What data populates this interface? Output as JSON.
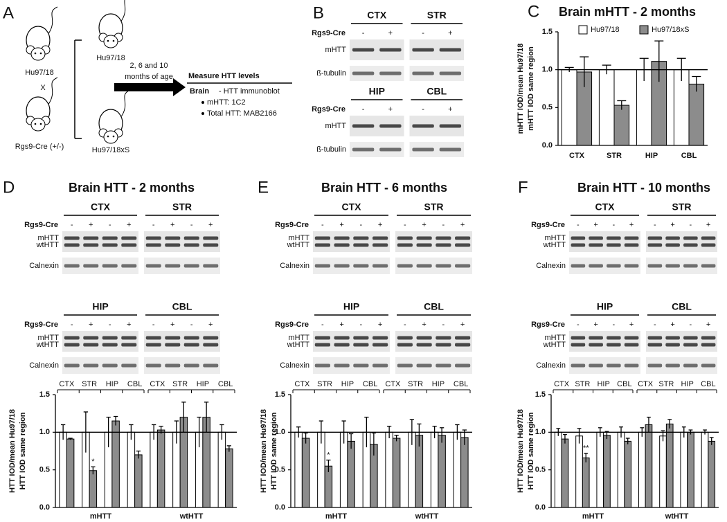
{
  "panel_a": {
    "letter": "A",
    "parent_1": "Hu97/18",
    "cross": "X",
    "parent_2": "Rgs9-Cre (+/-)",
    "offspring_1": "Hu97/18",
    "offspring_2": "Hu97/18xS",
    "age_line_1": "2, 6 and 10",
    "age_line_2": "months of age",
    "heading": "Measure HTT levels",
    "tissue": "Brain",
    "method": "- HTT immunoblot",
    "antibodies": [
      "mHTT: 1C2",
      "Total HTT: MAB2166"
    ]
  },
  "panel_b": {
    "letter": "B",
    "blocks": [
      {
        "regions": [
          "CTX",
          "STR"
        ],
        "genotype_label": "Rgs9-Cre",
        "lanes": [
          "-",
          "+"
        ],
        "band_labels": [
          "mHTT"
        ],
        "loading_label": "ß-tubulin"
      },
      {
        "regions": [
          "HIP",
          "CBL"
        ],
        "genotype_label": "Rgs9-Cre",
        "lanes": [
          "-",
          "+"
        ],
        "band_labels": [
          "mHTT"
        ],
        "loading_label": "ß-tubulin"
      }
    ]
  },
  "blot_panels": [
    {
      "letter": "D",
      "title": "Brain HTT - 2 months",
      "blocks": [
        {
          "regions": [
            "CTX",
            "STR"
          ],
          "genotype_label": "Rgs9-Cre",
          "lanes": [
            "-",
            "+",
            "-",
            "+"
          ],
          "band_labels": [
            "mHTT",
            "wtHTT"
          ],
          "loading_label": "Calnexin"
        },
        {
          "regions": [
            "HIP",
            "CBL"
          ],
          "genotype_label": "Rgs9-Cre",
          "lanes": [
            "-",
            "+",
            "-",
            "+"
          ],
          "band_labels": [
            "mHTT",
            "wtHTT"
          ],
          "loading_label": "Calnexin"
        }
      ]
    },
    {
      "letter": "E",
      "title": "Brain HTT - 6 months",
      "blocks": [
        {
          "regions": [
            "CTX",
            "STR"
          ],
          "genotype_label": "Rgs9-Cre",
          "lanes": [
            "-",
            "+",
            "-",
            "+"
          ],
          "band_labels": [
            "mHTT",
            "wtHTT"
          ],
          "loading_label": "Calnexin"
        },
        {
          "regions": [
            "HIP",
            "CBL"
          ],
          "genotype_label": "Rgs9-Cre",
          "lanes": [
            "-",
            "+",
            "-",
            "+"
          ],
          "band_labels": [
            "mHTT",
            "wtHTT"
          ],
          "loading_label": "Calnexin"
        }
      ]
    },
    {
      "letter": "F",
      "title": "Brain HTT - 10 months",
      "blocks": [
        {
          "regions": [
            "CTX",
            "STR"
          ],
          "genotype_label": "Rgs9-Cre",
          "lanes": [
            "-",
            "+",
            "-",
            "+"
          ],
          "band_labels": [
            "mHTT",
            "wtHTT"
          ],
          "loading_label": "Calnexin"
        },
        {
          "regions": [
            "HIP",
            "CBL"
          ],
          "genotype_label": "Rgs9-Cre",
          "lanes": [
            "-",
            "+",
            "-",
            "+"
          ],
          "band_labels": [
            "mHTT",
            "wtHTT"
          ],
          "loading_label": "Calnexin"
        }
      ]
    }
  ],
  "chart_data": [
    {
      "type": "bar",
      "letter": "C",
      "title": "Brain mHTT - 2 months",
      "ylabel": [
        "mHTT IOD/mean Hu97/18",
        "mHTT IOD same region"
      ],
      "categories": [
        "CTX",
        "STR",
        "HIP",
        "CBL"
      ],
      "series": [
        {
          "name": "Hu97/18",
          "color": "#ffffff",
          "values": [
            1.0,
            1.0,
            1.0,
            1.0
          ],
          "errors": [
            0.03,
            0.06,
            0.15,
            0.15
          ]
        },
        {
          "name": "Hu97/18xS",
          "color": "#8c8c8c",
          "values": [
            0.97,
            0.53,
            1.11,
            0.81
          ],
          "errors": [
            0.2,
            0.06,
            0.27,
            0.1
          ]
        }
      ],
      "ylim": [
        0,
        1.5
      ],
      "yticks": [
        {
          "value": 0,
          "label": "0.0"
        },
        0.5,
        {
          "value": 1,
          "label": "1.0"
        },
        1.5
      ],
      "reference_line": 1
    },
    {
      "type": "bar",
      "ylabel": [
        "HTT IOD/mean Hu97/18",
        "HTT IOD same region"
      ],
      "groups": [
        "mHTT",
        "wtHTT"
      ],
      "categories": [
        "CTX",
        "STR",
        "HIP",
        "CBL",
        "CTX",
        "STR",
        "HIP",
        "CBL"
      ],
      "series": [
        {
          "color": "#ffffff",
          "values": [
            1.0,
            1.0,
            1.0,
            1.0,
            1.0,
            1.0,
            1.0,
            1.0
          ],
          "errors": [
            0.1,
            0.27,
            0.2,
            0.1,
            0.1,
            0.15,
            0.2,
            0.1
          ]
        },
        {
          "color": "#8c8c8c",
          "values": [
            0.91,
            0.49,
            1.15,
            0.7,
            1.03,
            1.2,
            1.2,
            0.78
          ],
          "errors": [
            0.01,
            0.05,
            0.06,
            0.05,
            0.05,
            0.2,
            0.2,
            0.04
          ],
          "significance": [
            null,
            "*",
            null,
            null,
            null,
            null,
            null,
            null
          ]
        }
      ],
      "ylim": [
        0,
        1.5
      ],
      "yticks": [
        {
          "value": 0,
          "label": "0.0"
        },
        0.5,
        {
          "value": 1,
          "label": "1.0"
        },
        1.5
      ],
      "reference_line": 1
    },
    {
      "type": "bar",
      "ylabel": [
        "HTT IOD/mean Hu97/18",
        "HTT IOD same region"
      ],
      "groups": [
        "mHTT",
        "wtHTT"
      ],
      "categories": [
        "CTX",
        "STR",
        "HIP",
        "CBL",
        "CTX",
        "STR",
        "HIP",
        "CBL"
      ],
      "series": [
        {
          "color": "#ffffff",
          "values": [
            1.0,
            1.0,
            1.0,
            1.0,
            1.0,
            1.0,
            1.0,
            1.0
          ],
          "errors": [
            0.07,
            0.15,
            0.15,
            0.2,
            0.08,
            0.17,
            0.08,
            0.1
          ]
        },
        {
          "color": "#8c8c8c",
          "values": [
            0.92,
            0.55,
            0.88,
            0.84,
            0.92,
            0.96,
            0.96,
            0.93
          ],
          "errors": [
            0.07,
            0.08,
            0.1,
            0.15,
            0.04,
            0.15,
            0.1,
            0.1
          ],
          "significance": [
            null,
            "*",
            null,
            null,
            null,
            null,
            null,
            null
          ]
        }
      ],
      "ylim": [
        0,
        1.5
      ],
      "yticks": [
        {
          "value": 0,
          "label": "0.0"
        },
        0.5,
        {
          "value": 1,
          "label": "1.0"
        },
        1.5
      ],
      "reference_line": 1
    },
    {
      "type": "bar",
      "ylabel": [
        "HTT IOD/mean Hu97/18",
        "HTT IOD same region"
      ],
      "groups": [
        "mHTT",
        "wtHTT"
      ],
      "categories": [
        "CTX",
        "STR",
        "HIP",
        "CBL",
        "CTX",
        "STR",
        "HIP",
        "CBL"
      ],
      "series": [
        {
          "color": "#ffffff",
          "values": [
            1.0,
            0.95,
            1.0,
            1.0,
            1.0,
            0.95,
            1.0,
            1.0
          ],
          "errors": [
            0.05,
            0.1,
            0.06,
            0.07,
            0.06,
            0.07,
            0.07,
            0.03
          ]
        },
        {
          "color": "#8c8c8c",
          "values": [
            0.91,
            0.66,
            0.96,
            0.88,
            1.1,
            1.11,
            1.0,
            0.88
          ],
          "errors": [
            0.06,
            0.06,
            0.05,
            0.04,
            0.1,
            0.06,
            0.03,
            0.05
          ],
          "significance": [
            null,
            "**",
            null,
            null,
            null,
            null,
            null,
            null
          ]
        }
      ],
      "ylim": [
        0,
        1.5
      ],
      "yticks": [
        {
          "value": 0,
          "label": "0.0"
        },
        0.5,
        {
          "value": 1,
          "label": "1.0"
        },
        1.5
      ],
      "reference_line": 1
    }
  ]
}
